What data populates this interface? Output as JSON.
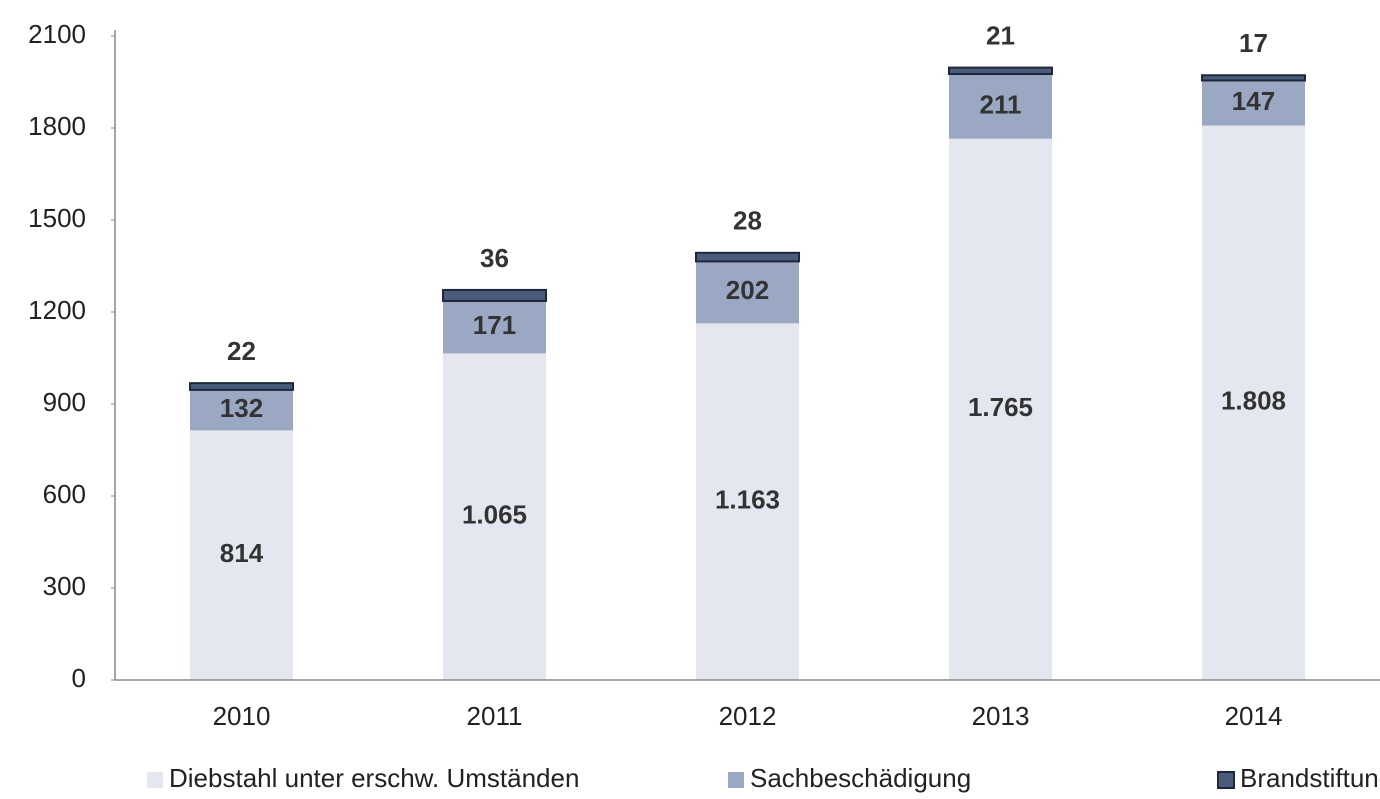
{
  "chart_data": {
    "type": "stacked_bar",
    "categories": [
      "2010",
      "2011",
      "2012",
      "2013",
      "2014"
    ],
    "series": [
      {
        "name": "Diebstahl unter erschw. Umständen",
        "color": "#e4e7ef",
        "values": [
          814,
          1065,
          1163,
          1765,
          1808
        ],
        "value_labels": [
          "814",
          "1.065",
          "1.163",
          "1.765",
          "1.808"
        ]
      },
      {
        "name": "Sachbeschädigung",
        "color": "#9aa8c4",
        "values": [
          132,
          171,
          202,
          211,
          147
        ]
      },
      {
        "name": "Brandstiftung",
        "color": "#4a5b7c",
        "values": [
          22,
          36,
          28,
          21,
          17
        ]
      }
    ],
    "ylim": [
      0,
      2100
    ],
    "yticks": [
      0,
      300,
      600,
      900,
      1200,
      1500,
      1800,
      2100
    ],
    "grid": false,
    "legend": "bottom"
  }
}
